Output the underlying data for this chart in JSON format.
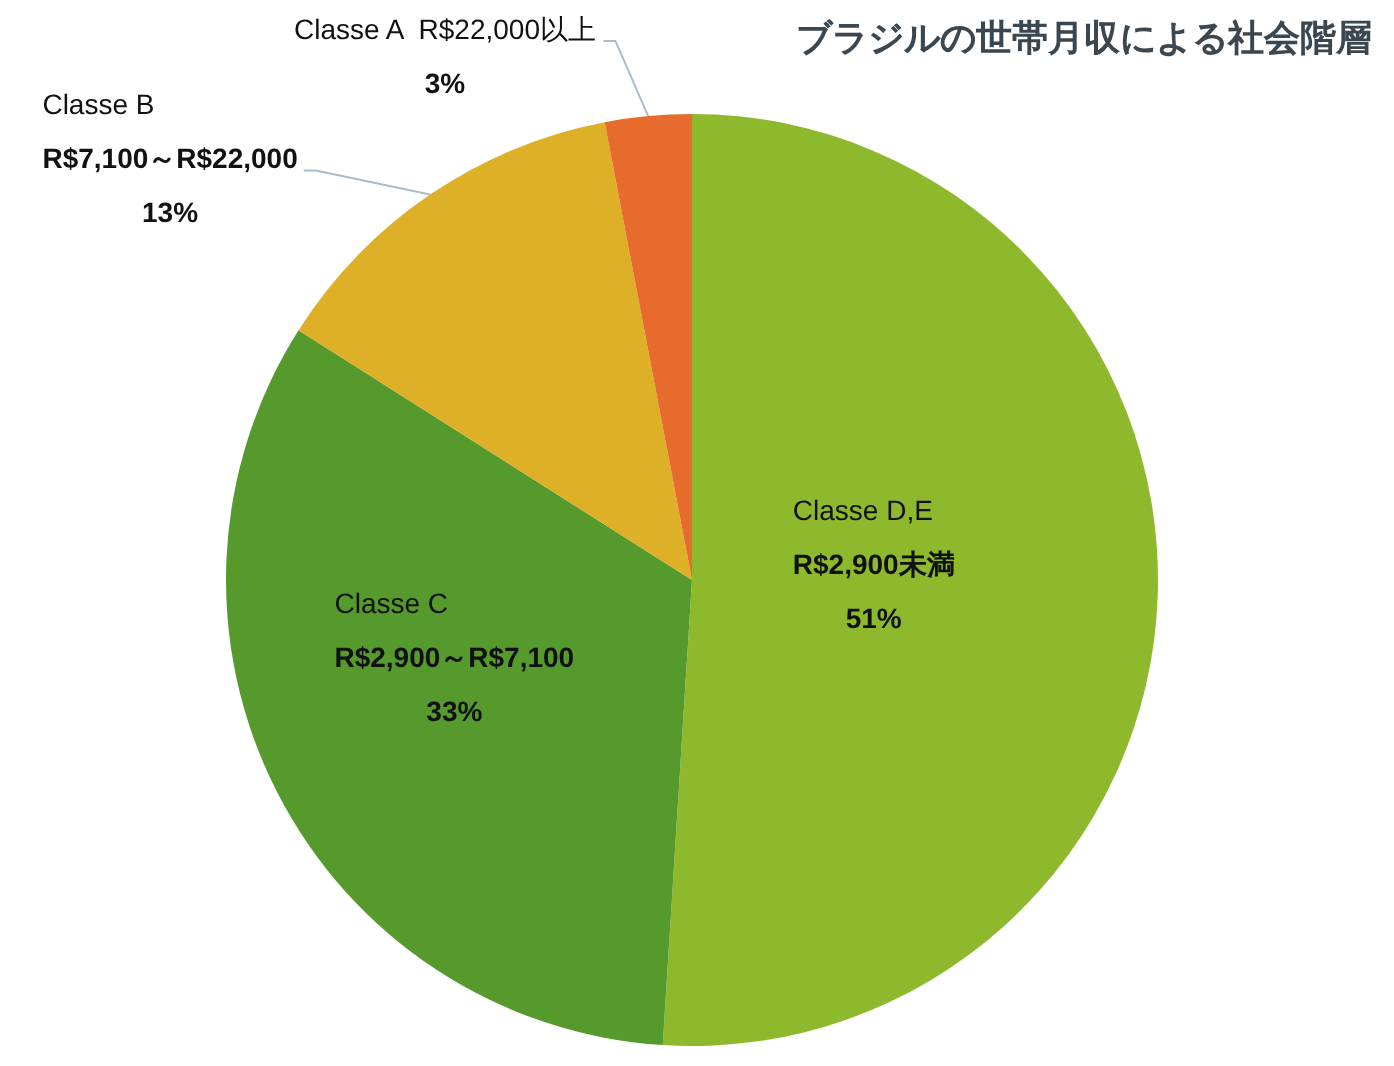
{
  "chart_data": {
    "type": "pie",
    "title": "ブラジルの世帯月収による社会階層",
    "categories": [
      "Classe D,E\nR$2,900未満",
      "Classe C\nR$2,900～R$7,100",
      "Classe B\nR$7,100～R$22,000",
      "Classe A  R$22,000以上"
    ],
    "values": [
      51,
      33,
      13,
      3
    ],
    "colors": [
      "#8fb92d",
      "#56992d",
      "#ddb028",
      "#e66b2c"
    ],
    "value_labels": [
      "51%",
      "33%",
      "13%",
      "3%"
    ]
  }
}
